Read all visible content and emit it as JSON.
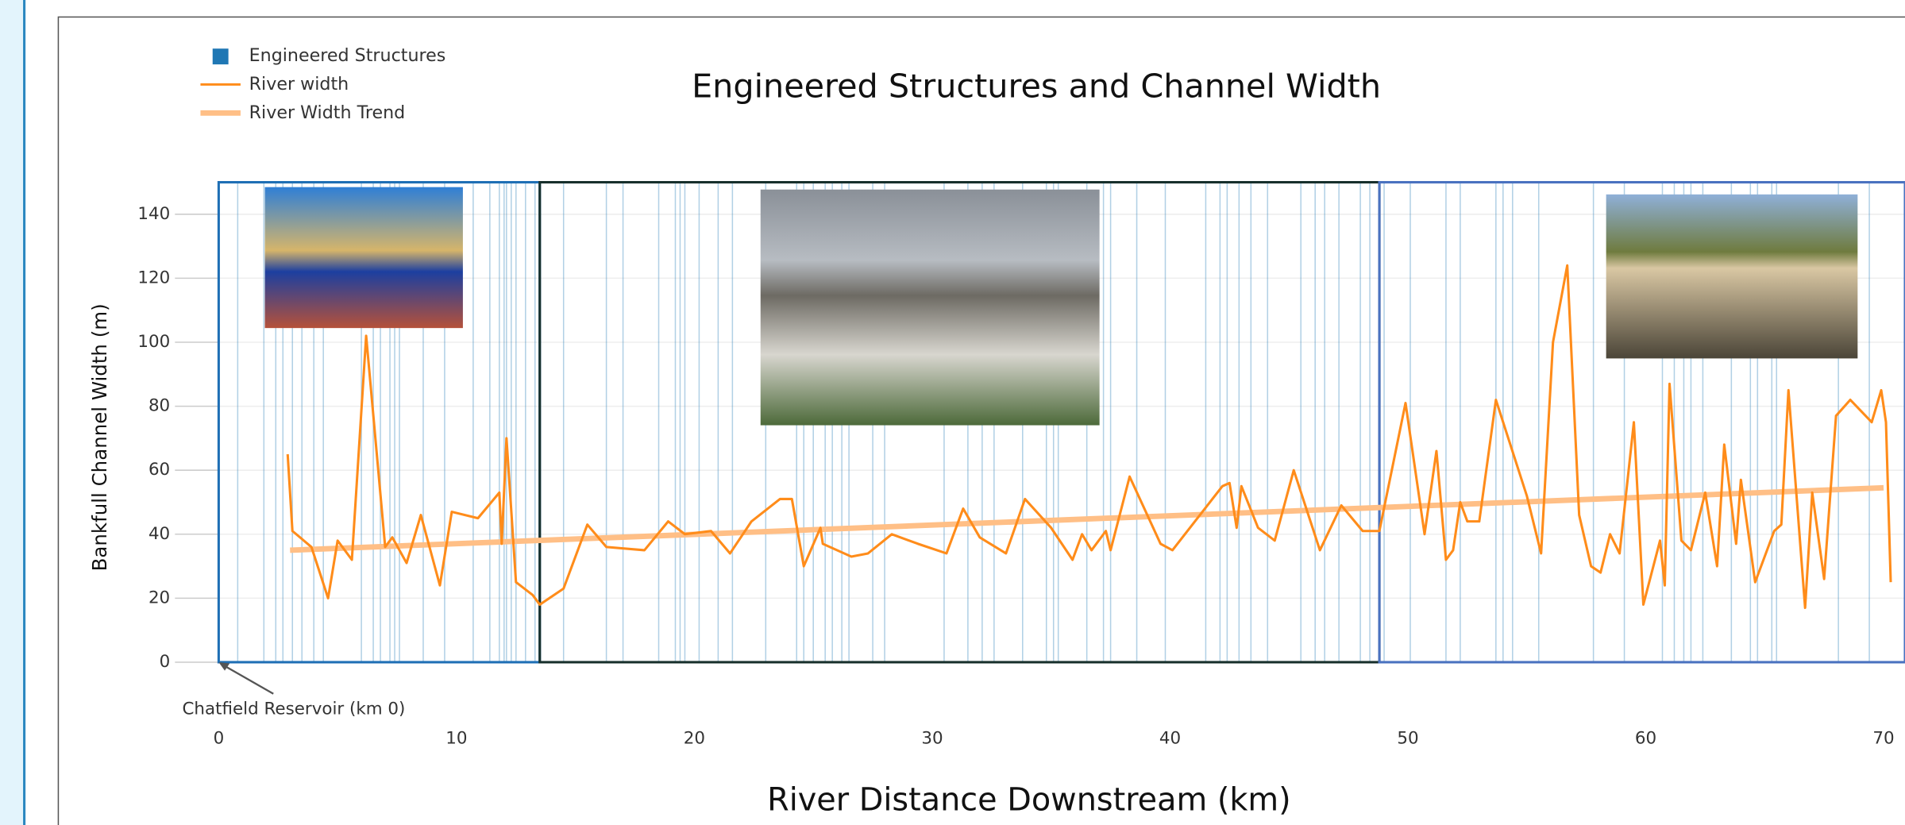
{
  "chart_data": {
    "type": "line",
    "title": "Engineered Structures and Channel Width",
    "x_label": "River Distance Downstream (km)",
    "y_label": "Bankfull Channel Width (m)",
    "xlim": [
      0,
      70.9
    ],
    "ylim": [
      0,
      150
    ],
    "xticks": [
      0,
      10,
      20,
      30,
      40,
      50,
      60,
      70
    ],
    "yticks": [
      0,
      20,
      40,
      60,
      80,
      100,
      120,
      140
    ],
    "grid": true,
    "legend": "upper left",
    "regions": [
      {
        "start": 0,
        "end": 13.5,
        "color": "#1f6fb5"
      },
      {
        "start": 13.5,
        "end": 48.8,
        "color": "#17302c"
      },
      {
        "start": 48.8,
        "end": 70.9,
        "color": "#4a72c0"
      }
    ],
    "annotations": [
      {
        "text": "Chatfield Reservoir (km 0)",
        "x": 0,
        "y": 0
      }
    ],
    "series": [
      {
        "name": "Engineered Structures",
        "color": "#1f77b4",
        "x": [
          0.8,
          1.9,
          2.4,
          2.7,
          3.1,
          3.5,
          4.0,
          4.4,
          6.0,
          6.5,
          6.8,
          7.2,
          7.4,
          7.6,
          8.6,
          9.5,
          10.7,
          11.4,
          11.8,
          12.0,
          12.1,
          12.3,
          12.5,
          12.9,
          13.3,
          14.5,
          16.3,
          17.0,
          18.5,
          19.2,
          19.4,
          19.6,
          20.2,
          21.0,
          21.6,
          23.0,
          24.3,
          24.6,
          25.0,
          25.5,
          25.8,
          26.2,
          26.5,
          27.5,
          28.0,
          30.5,
          31.5,
          32.1,
          32.6,
          33.8,
          34.8,
          35.1,
          35.3,
          36.5,
          37.2,
          37.5,
          38.6,
          39.8,
          41.5,
          42.1,
          42.4,
          42.9,
          43.4,
          44.1,
          45.5,
          46.1,
          46.5,
          47.1,
          48.0,
          48.4,
          49.0,
          50.1,
          51.6,
          52.2,
          53.7,
          54.0,
          54.4,
          55.5,
          57.8,
          59.1,
          60.7,
          61.2,
          61.6,
          61.9,
          62.4,
          63.6,
          64.4,
          64.7,
          65.3,
          65.5,
          68.1,
          69.4
        ]
      },
      {
        "name": "River width",
        "color": "#ff8c1a",
        "x": [
          2.9,
          3.1,
          3.9,
          4.6,
          5.0,
          5.6,
          6.2,
          7.0,
          7.3,
          7.9,
          8.5,
          9.3,
          9.8,
          10.9,
          11.8,
          11.9,
          12.1,
          12.5,
          13.2,
          13.5,
          14.5,
          15.5,
          16.3,
          17.9,
          18.9,
          19.6,
          20.7,
          21.5,
          22.4,
          23.6,
          24.1,
          24.6,
          25.3,
          25.4,
          26.6,
          27.3,
          28.3,
          29.4,
          30.6,
          31.3,
          32.0,
          33.1,
          33.9,
          35.0,
          35.9,
          36.3,
          36.7,
          37.3,
          37.5,
          38.3,
          39.6,
          40.1,
          42.2,
          42.5,
          42.8,
          43.0,
          43.7,
          44.4,
          45.2,
          46.3,
          47.2,
          48.1,
          48.8,
          49.9,
          50.7,
          51.2,
          51.6,
          51.9,
          52.2,
          52.5,
          53.0,
          53.7,
          55.0,
          55.6,
          56.1,
          56.7,
          57.2,
          57.7,
          58.1,
          58.5,
          58.9,
          59.5,
          59.9,
          60.6,
          60.8,
          61.0,
          61.5,
          61.9,
          62.5,
          63.0,
          63.3,
          63.8,
          64.0,
          64.6,
          65.4,
          65.7,
          66.0,
          66.7,
          67.0,
          67.5,
          68.0,
          68.6,
          69.5,
          69.9,
          70.1,
          70.3
        ],
        "values": [
          65,
          41,
          36,
          20,
          38,
          32,
          102,
          36,
          39,
          31,
          46,
          24,
          47,
          45,
          53,
          37,
          70,
          25,
          21,
          18,
          23,
          43,
          36,
          35,
          44,
          40,
          41,
          34,
          44,
          51,
          51,
          30,
          42,
          37,
          33,
          34,
          40,
          37,
          34,
          48,
          39,
          34,
          51,
          42,
          32,
          40,
          35,
          41,
          35,
          58,
          37,
          35,
          55,
          56,
          42,
          55,
          42,
          38,
          60,
          35,
          49,
          41,
          41,
          81,
          40,
          66,
          32,
          35,
          50,
          44,
          44,
          82,
          52,
          34,
          100,
          124,
          46,
          30,
          28,
          40,
          34,
          75,
          18,
          38,
          24,
          87,
          38,
          35,
          53,
          30,
          68,
          37,
          57,
          25,
          41,
          43,
          85,
          17,
          53,
          26,
          77,
          82,
          75,
          85,
          75,
          25
        ]
      },
      {
        "name": "River Width Trend",
        "color": "#ffbf86",
        "x": [
          3,
          70
        ],
        "values": [
          35,
          54.5
        ]
      }
    ]
  }
}
